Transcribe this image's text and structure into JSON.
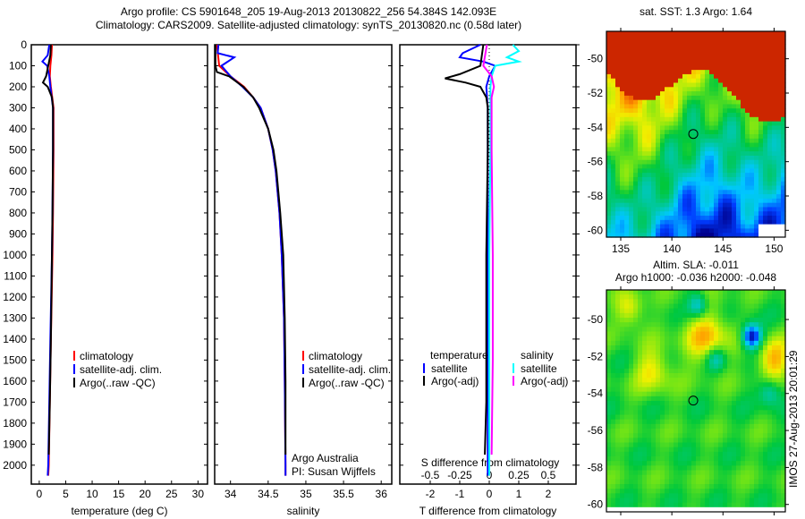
{
  "title_line1": "Argo profile: CS 5901648_205 19-Aug-2013 20130822_256 54.384S 142.093E",
  "title_line2": "Climatology: CARS2009. Satellite-adjusted climatology: synTS_20130820.nc (0.58d later)",
  "side_label": "IMOS 27-Aug-2013 20:01:29",
  "colors": {
    "climatology": "#ff0000",
    "satellite": "#0000ff",
    "argo": "#000000",
    "sal_satellite": "#00ffff",
    "sal_argo": "#ff00ff"
  },
  "chart_data": [
    {
      "type": "line",
      "name": "temperature",
      "xlabel": "temperature (deg C)",
      "ylabel": "depth",
      "xlim": [
        -1.5,
        31.8
      ],
      "ylim": [
        0,
        2090
      ],
      "xticks": [
        0,
        5,
        10,
        15,
        20,
        25,
        30
      ],
      "yticks": [
        0,
        100,
        200,
        300,
        400,
        500,
        600,
        700,
        800,
        900,
        1000,
        1100,
        1200,
        1300,
        1400,
        1500,
        1600,
        1700,
        1800,
        1900,
        2000
      ],
      "legend": [
        "climatology",
        "satellite-adj. clim.",
        "Argo(..raw -QC)"
      ],
      "series": [
        {
          "name": "climatology",
          "depth": [
            0,
            50,
            100,
            150,
            200,
            300,
            500,
            800,
            1000,
            1400,
            1700,
            2000,
            2050
          ],
          "values": [
            2.4,
            2.3,
            2.1,
            2.0,
            2.2,
            2.7,
            2.7,
            2.6,
            2.5,
            2.2,
            2.0,
            1.8,
            1.7
          ]
        },
        {
          "name": "satellite-adj. clim.",
          "depth": [
            0,
            50,
            80,
            100,
            150,
            200,
            300,
            500,
            800,
            1000,
            1400,
            1700,
            2000,
            2050
          ],
          "values": [
            1.9,
            1.6,
            0.6,
            1.5,
            1.9,
            2.1,
            2.6,
            2.6,
            2.5,
            2.4,
            2.1,
            1.9,
            1.7,
            1.6
          ]
        },
        {
          "name": "Argo(..raw -QC)",
          "depth": [
            0,
            50,
            100,
            150,
            180,
            200,
            250,
            300,
            500,
            800,
            1000,
            1400,
            1700,
            1950
          ],
          "values": [
            2.2,
            2.1,
            1.7,
            1.3,
            0.7,
            1.6,
            2.4,
            2.6,
            2.6,
            2.5,
            2.4,
            2.2,
            2.0,
            1.8
          ]
        }
      ]
    },
    {
      "type": "line",
      "name": "salinity",
      "xlabel": "salinity",
      "ylabel": "depth",
      "xlim": [
        33.79,
        36.14
      ],
      "ylim": [
        0,
        2090
      ],
      "xticks": [
        34,
        34.5,
        35,
        35.5,
        36
      ],
      "legend": [
        "climatology",
        "satellite-adj. clim.",
        "Argo(..raw -QC)"
      ],
      "annotation": [
        "Argo Australia",
        "PI: Susan Wijffels"
      ],
      "series": [
        {
          "name": "climatology",
          "depth": [
            0,
            100,
            150,
            200,
            250,
            300,
            400,
            500,
            600,
            800,
            1000,
            1300,
            1600,
            2000,
            2050
          ],
          "values": [
            33.82,
            33.85,
            34.0,
            34.18,
            34.3,
            34.4,
            34.5,
            34.56,
            34.6,
            34.65,
            34.68,
            34.71,
            34.72,
            34.73,
            34.73
          ]
        },
        {
          "name": "satellite-adj. clim.",
          "depth": [
            0,
            40,
            60,
            100,
            150,
            200,
            250,
            300,
            400,
            500,
            600,
            800,
            1000,
            1300,
            1600,
            2000,
            2050
          ],
          "values": [
            33.84,
            33.83,
            34.05,
            33.88,
            34.0,
            34.16,
            34.3,
            34.4,
            34.5,
            34.56,
            34.6,
            34.65,
            34.68,
            34.71,
            34.72,
            34.73,
            34.73
          ]
        },
        {
          "name": "Argo(..raw -QC)",
          "depth": [
            0,
            100,
            130,
            150,
            200,
            250,
            300,
            400,
            500,
            600,
            800,
            1000,
            1300,
            1600,
            1950
          ],
          "values": [
            33.8,
            33.8,
            33.82,
            33.98,
            34.17,
            34.3,
            34.38,
            34.5,
            34.57,
            34.61,
            34.66,
            34.7,
            34.72,
            34.73,
            34.73
          ]
        }
      ]
    },
    {
      "type": "line",
      "name": "differences",
      "xlabel": "T difference from climatology",
      "x2label": "S difference from climatology",
      "xlim": [
        -3.03,
        2.94
      ],
      "ylim": [
        0,
        2090
      ],
      "xticks": [
        -2,
        -1,
        0,
        1,
        2
      ],
      "x2ticks": [
        "-0.5",
        "-0.25",
        "0",
        "0.25",
        "0.5"
      ],
      "legend": {
        "temperature": "temperature",
        "salinity": "salinity",
        "items": [
          "satellite",
          "Argo(-adj)",
          "satellite",
          "Argo(-adj)"
        ]
      },
      "series": [
        {
          "name": "T satellite",
          "depth": [
            0,
            40,
            60,
            80,
            100,
            150,
            200,
            300,
            500,
            1000,
            1500,
            2000,
            2050
          ],
          "values": [
            -0.3,
            -0.9,
            -1.0,
            -0.2,
            0.2,
            0,
            -0.1,
            -0.05,
            -0.05,
            -0.05,
            -0.05,
            -0.05,
            -0.05
          ]
        },
        {
          "name": "T Argo(-adj)",
          "depth": [
            0,
            100,
            140,
            160,
            180,
            200,
            250,
            300,
            500,
            1000,
            1500,
            1700,
            1950
          ],
          "values": [
            -0.2,
            -0.3,
            -1.0,
            -1.5,
            -0.8,
            -0.3,
            -0.1,
            -0.05,
            -0.05,
            -0.1,
            -0.1,
            -0.1,
            -0.15
          ]
        },
        {
          "name": "S satellite",
          "depth": [
            0,
            30,
            60,
            80,
            100,
            150,
            200,
            300,
            500,
            1000,
            1500,
            2000,
            2050
          ],
          "values": [
            0.2,
            0.25,
            0.15,
            0.25,
            0.05,
            0.02,
            0.01,
            0.01,
            0.01,
            0.0,
            0.0,
            0.0,
            0.0
          ]
        },
        {
          "name": "S Argo(-adj)",
          "depth": [
            0,
            100,
            150,
            200,
            250,
            300,
            500,
            1000,
            1500,
            1950
          ],
          "values": [
            -0.02,
            -0.05,
            0.02,
            0.04,
            0.02,
            0.02,
            0.02,
            0.03,
            0.03,
            0.02
          ]
        }
      ]
    },
    {
      "type": "heatmap",
      "name": "sst-map",
      "title": "sat. SST: 1.3 Argo: 1.64",
      "xlim": [
        133.6,
        151.1
      ],
      "ylim": [
        -60.4,
        -48.4
      ],
      "xticks": [
        135,
        140,
        145,
        150
      ],
      "yticks": [
        -50,
        -52,
        -54,
        -56,
        -58,
        -60
      ],
      "marker": {
        "lon": 142.093,
        "lat": -54.384
      }
    },
    {
      "type": "heatmap",
      "name": "sla-map",
      "title": "Altim. SLA: -0.011",
      "subtitle": "Argo h1000: -0.036 h2000: -0.048",
      "xlim": [
        133.6,
        151.1
      ],
      "ylim": [
        -60.4,
        -48.4
      ],
      "xticks": [
        135,
        140,
        145,
        150
      ],
      "yticks": [
        -50,
        -52,
        -54,
        -56,
        -58,
        -60
      ],
      "marker": {
        "lon": 142.093,
        "lat": -54.384
      }
    }
  ]
}
